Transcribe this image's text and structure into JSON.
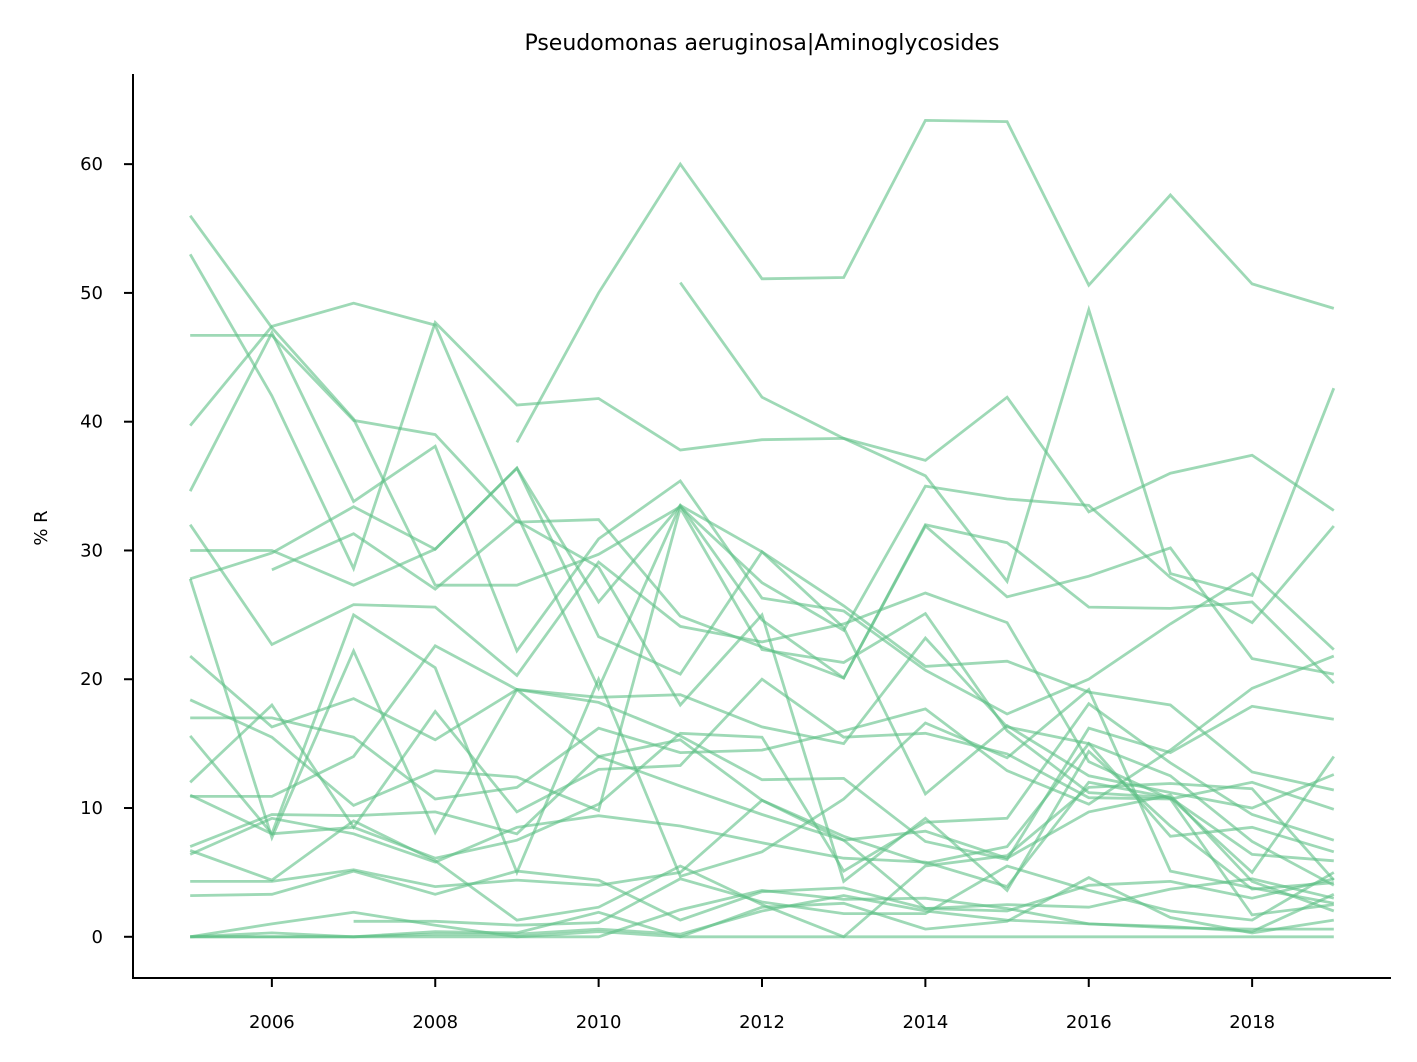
{
  "chart_data": {
    "type": "line",
    "title": "Pseudomonas aeruginosa|Aminoglycosides",
    "xlabel": "",
    "ylabel": "% R",
    "xlim": [
      2004.3,
      2019.7
    ],
    "ylim": [
      -3.2,
      67
    ],
    "xticks": [
      2006,
      2008,
      2010,
      2012,
      2014,
      2016,
      2018
    ],
    "yticks": [
      0,
      10,
      20,
      30,
      40,
      50,
      60
    ],
    "grid": false,
    "legend": "none",
    "color": "#5dbf85",
    "x": [
      2005,
      2006,
      2007,
      2008,
      2009,
      2010,
      2011,
      2012,
      2013,
      2014,
      2015,
      2016,
      2017,
      2018,
      2019
    ],
    "series": [
      {
        "values": [
          null,
          null,
          null,
          null,
          38.4,
          50.0,
          60.0,
          51.1,
          51.2,
          63.4,
          63.3,
          50.6,
          57.6,
          50.7,
          48.8
        ]
      },
      {
        "values": [
          null,
          null,
          null,
          null,
          null,
          null,
          50.8,
          41.9,
          38.7,
          37.0,
          41.9,
          33.0,
          36.0,
          37.4,
          33.1
        ]
      },
      {
        "values": [
          46.7,
          46.7,
          40.1,
          39.0,
          32.2,
          32.4,
          24.9,
          22.5,
          20.1,
          32.0,
          30.6,
          25.6,
          25.5,
          26.0,
          19.7
        ]
      },
      {
        "values": [
          56.0,
          47.3,
          40.2,
          27.3,
          27.3,
          29.7,
          33.4,
          27.5,
          23.8,
          35.0,
          34.0,
          33.5,
          27.9,
          24.4,
          31.9
        ]
      },
      {
        "values": [
          53.0,
          42.0,
          28.6,
          47.7,
          41.3,
          41.8,
          37.8,
          38.6,
          38.7,
          35.8,
          27.6,
          48.7,
          28.2,
          26.5,
          42.6
        ]
      },
      {
        "values": [
          39.7,
          47.4,
          49.2,
          47.5,
          32.8,
          19.3,
          33.5,
          29.9,
          25.7,
          21.0,
          21.4,
          19.0,
          18.0,
          12.8,
          11.4
        ]
      },
      {
        "values": [
          34.6,
          46.9,
          33.8,
          38.1,
          22.2,
          30.9,
          35.4,
          26.3,
          25.3,
          20.7,
          17.3,
          20.0,
          24.3,
          28.2,
          22.3
        ]
      },
      {
        "values": [
          27.8,
          29.8,
          33.4,
          30.1,
          36.4,
          26.0,
          33.5,
          24.6,
          20.1,
          31.9,
          26.4,
          28.0,
          30.2,
          21.6,
          20.4
        ]
      },
      {
        "values": [
          30.0,
          30.0,
          27.3,
          30.1,
          36.4,
          23.3,
          20.4,
          29.9,
          24.0,
          11.1,
          16.4,
          12.5,
          11.2,
          10.0,
          12.6
        ]
      },
      {
        "values": [
          32.0,
          22.7,
          25.8,
          25.6,
          20.3,
          29.1,
          24.1,
          22.9,
          24.3,
          26.7,
          24.4,
          13.6,
          10.7,
          12.0,
          9.9
        ]
      },
      {
        "values": [
          null,
          28.5,
          31.3,
          27.0,
          32.3,
          28.7,
          18.0,
          25.0,
          4.3,
          9.2,
          3.6,
          14.4,
          8.6,
          3.7,
          4.2
        ]
      },
      {
        "values": [
          27.8,
          7.7,
          22.2,
          8.1,
          19.2,
          18.6,
          18.8,
          16.3,
          15.0,
          23.2,
          16.3,
          15.0,
          12.5,
          7.4,
          4.0
        ]
      },
      {
        "values": [
          21.8,
          16.3,
          18.5,
          15.3,
          19.2,
          18.2,
          15.6,
          12.2,
          12.3,
          7.4,
          6.0,
          16.2,
          14.3,
          17.9,
          16.9
        ]
      },
      {
        "values": [
          18.4,
          15.5,
          10.2,
          12.9,
          12.4,
          9.8,
          33.3,
          22.3,
          21.3,
          25.1,
          16.0,
          11.2,
          10.8,
          5.0,
          14.0
        ]
      },
      {
        "values": [
          17.0,
          17.0,
          15.5,
          10.7,
          11.6,
          16.2,
          14.3,
          14.5,
          16.0,
          17.7,
          12.9,
          10.3,
          14.5,
          19.3,
          21.8
        ]
      },
      {
        "values": [
          15.6,
          8.0,
          25.0,
          20.9,
          5.0,
          20.0,
          4.7,
          6.6,
          10.7,
          16.6,
          13.9,
          19.2,
          5.1,
          3.8,
          2.6
        ]
      },
      {
        "values": [
          12.0,
          18.0,
          8.5,
          17.5,
          9.7,
          13.0,
          13.3,
          20.0,
          15.5,
          15.8,
          14.2,
          10.8,
          10.7,
          1.7,
          2.5
        ]
      },
      {
        "values": [
          11.0,
          8.0,
          8.5,
          6.1,
          7.5,
          10.3,
          15.8,
          15.5,
          5.1,
          8.9,
          9.2,
          18.1,
          13.5,
          9.5,
          7.5
        ]
      },
      {
        "values": [
          10.9,
          10.9,
          14.0,
          22.6,
          19.2,
          14.0,
          15.3,
          10.6,
          7.8,
          5.7,
          7.0,
          15.0,
          7.8,
          8.5,
          6.6
        ]
      },
      {
        "values": [
          7.0,
          9.5,
          9.4,
          9.7,
          8.0,
          14.0,
          11.7,
          9.5,
          7.5,
          8.2,
          6.1,
          9.7,
          11.0,
          4.3,
          2.0
        ]
      },
      {
        "values": [
          6.7,
          4.4,
          9.0,
          5.9,
          1.3,
          2.3,
          5.5,
          2.5,
          0.0,
          5.5,
          6.3,
          11.6,
          11.9,
          11.5,
          4.4
        ]
      },
      {
        "values": [
          6.4,
          9.2,
          8.0,
          5.8,
          8.5,
          9.4,
          8.6,
          7.3,
          6.1,
          5.8,
          3.9,
          12.0,
          10.8,
          6.4,
          5.9
        ]
      },
      {
        "values": [
          4.3,
          4.3,
          5.2,
          3.9,
          4.4,
          4.0,
          5.0,
          10.6,
          7.5,
          2.2,
          2.5,
          2.3,
          3.7,
          4.5,
          3.0
        ]
      },
      {
        "values": [
          3.2,
          3.3,
          5.1,
          3.3,
          5.1,
          4.4,
          1.3,
          3.5,
          3.8,
          2.2,
          2.0,
          4.0,
          4.3,
          3.0,
          4.5
        ]
      },
      {
        "values": [
          null,
          null,
          1.2,
          1.2,
          0.9,
          1.1,
          4.5,
          2.7,
          1.8,
          1.8,
          5.5,
          3.6,
          2.0,
          1.3,
          5.0
        ]
      },
      {
        "values": [
          0.0,
          1.0,
          1.9,
          0.9,
          0.0,
          0.0,
          2.1,
          3.6,
          2.9,
          3.0,
          2.2,
          1.0,
          0.8,
          0.4,
          3.3
        ]
      },
      {
        "values": [
          0.0,
          0.0,
          0.0,
          0.4,
          0.3,
          1.9,
          0.0,
          2.3,
          2.6,
          0.6,
          1.2,
          4.6,
          1.5,
          0.3,
          1.3
        ]
      },
      {
        "values": [
          0.0,
          0.3,
          0.0,
          0.0,
          0.0,
          0.4,
          0.0,
          0.0,
          0.0,
          0.0,
          0.0,
          0.0,
          0.0,
          0.0,
          0.0
        ]
      },
      {
        "values": [
          0.0,
          0.0,
          0.0,
          0.2,
          0.2,
          0.6,
          0.2,
          2.0,
          3.2,
          2.0,
          1.3,
          1.0,
          0.7,
          0.6,
          0.6
        ]
      }
    ]
  }
}
